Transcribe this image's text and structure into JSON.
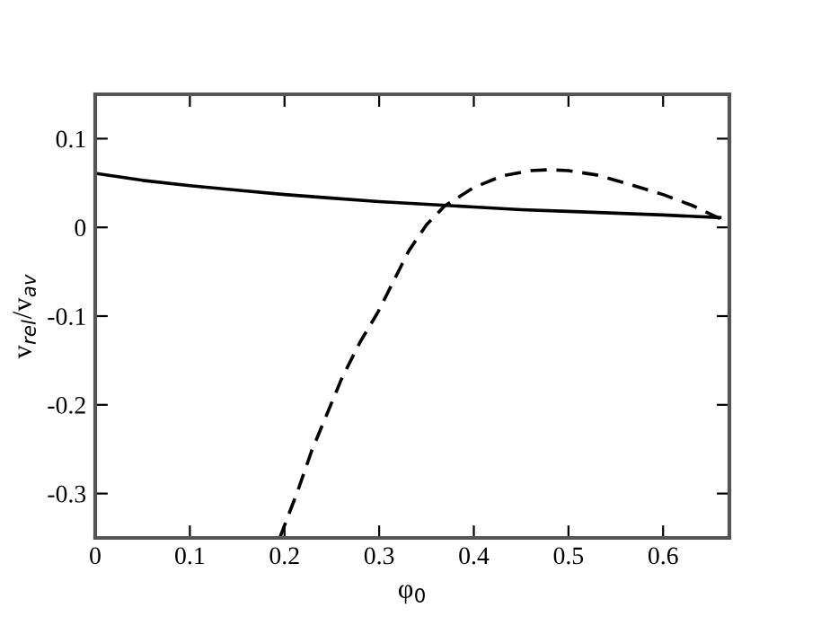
{
  "chart_data": {
    "type": "line",
    "xlabel": "φ$_{0}$",
    "ylabel": "v$_{rel}$/v$_{av}$",
    "xlim": [
      0,
      0.67
    ],
    "ylim": [
      -0.35,
      0.15
    ],
    "xticks": [
      0,
      0.1,
      0.2,
      0.3,
      0.4,
      0.5,
      0.6
    ],
    "yticks": [
      -0.3,
      -0.2,
      -0.1,
      0,
      0.1
    ],
    "grid": false,
    "legend": false,
    "marker": "none",
    "series": [
      {
        "color": "#000000",
        "line_style": "solid",
        "x": [
          0,
          0.05,
          0.1,
          0.15,
          0.2,
          0.25,
          0.3,
          0.35,
          0.4,
          0.45,
          0.5,
          0.55,
          0.6,
          0.66
        ],
        "values": [
          0.061,
          0.053,
          0.047,
          0.042,
          0.037,
          0.033,
          0.029,
          0.026,
          0.023,
          0.02,
          0.018,
          0.016,
          0.014,
          0.011
        ]
      },
      {
        "color": "#000000",
        "line_style": "dashed",
        "x": [
          0.195,
          0.214,
          0.229,
          0.261,
          0.28,
          0.299,
          0.331,
          0.35,
          0.369,
          0.4,
          0.43,
          0.46,
          0.48,
          0.5,
          0.53,
          0.56,
          0.6,
          0.63,
          0.66
        ],
        "values": [
          -0.35,
          -0.297,
          -0.251,
          -0.169,
          -0.129,
          -0.095,
          -0.027,
          0.003,
          0.024,
          0.045,
          0.058,
          0.064,
          0.065,
          0.064,
          0.059,
          0.05,
          0.037,
          0.025,
          0.01
        ]
      }
    ]
  }
}
